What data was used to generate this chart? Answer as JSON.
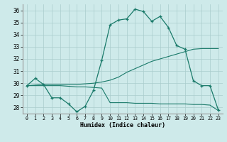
{
  "xlabel": "Humidex (Indice chaleur)",
  "background_color": "#ceeaea",
  "grid_color": "#aacccc",
  "line_color": "#1a7a6a",
  "xlim": [
    -0.5,
    23.5
  ],
  "ylim": [
    27.5,
    36.5
  ],
  "xticks": [
    0,
    1,
    2,
    3,
    4,
    5,
    6,
    7,
    8,
    9,
    10,
    11,
    12,
    13,
    14,
    15,
    16,
    17,
    18,
    19,
    20,
    21,
    22,
    23
  ],
  "yticks": [
    28,
    29,
    30,
    31,
    32,
    33,
    34,
    35,
    36
  ],
  "line1_x": [
    0,
    1,
    2,
    3,
    4,
    5,
    6,
    7,
    8,
    9,
    10,
    11,
    12,
    13,
    14,
    15,
    16,
    17,
    18,
    19,
    20,
    21,
    22,
    23
  ],
  "line1_y": [
    29.8,
    30.4,
    29.9,
    28.8,
    28.8,
    28.3,
    27.65,
    28.1,
    29.4,
    31.9,
    34.8,
    35.2,
    35.3,
    36.1,
    35.9,
    35.1,
    35.5,
    34.6,
    33.1,
    32.8,
    30.2,
    29.8,
    29.8,
    27.8
  ],
  "line2_x": [
    0,
    2,
    3,
    4,
    5,
    6,
    7,
    8,
    9,
    10,
    11,
    12,
    13,
    14,
    15,
    16,
    17,
    18,
    19,
    20,
    21,
    22,
    23
  ],
  "line2_y": [
    29.8,
    29.9,
    29.9,
    29.9,
    29.9,
    29.9,
    29.95,
    30.0,
    30.1,
    30.25,
    30.5,
    30.9,
    31.2,
    31.5,
    31.8,
    32.0,
    32.2,
    32.4,
    32.6,
    32.8,
    32.85,
    32.85,
    32.85
  ],
  "line3_x": [
    0,
    2,
    3,
    4,
    5,
    6,
    7,
    8,
    9,
    10,
    11,
    12,
    13,
    14,
    15,
    16,
    17,
    18,
    19,
    20,
    21,
    22,
    23
  ],
  "line3_y": [
    29.8,
    29.8,
    29.8,
    29.8,
    29.75,
    29.7,
    29.7,
    29.65,
    29.6,
    28.4,
    28.4,
    28.4,
    28.35,
    28.35,
    28.35,
    28.3,
    28.3,
    28.3,
    28.3,
    28.25,
    28.25,
    28.2,
    27.75
  ]
}
